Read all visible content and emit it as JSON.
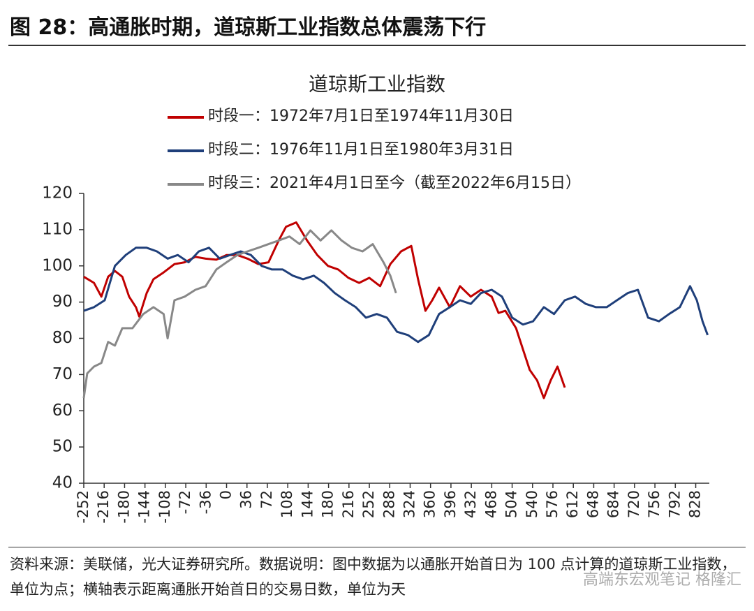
{
  "header_title": "图 28：高通胀时期，道琼斯工业指数总体震荡下行",
  "source_note": "资料来源：美联储，光大证券研究所。数据说明：图中数据为以通胀开始首日为 100 点计算的道琼斯工业指数，单位为点；横轴表示距离通胀开始首日的交易日数，单位为天",
  "watermark": "高端东宏观笔记 格隆汇",
  "chart_data": {
    "type": "line",
    "title": "道琼斯工业指数",
    "xlim": [
      -252,
      852
    ],
    "ylim": [
      40,
      120
    ],
    "xticks": [
      -252,
      -216,
      -180,
      -144,
      -108,
      -72,
      -36,
      0,
      36,
      72,
      108,
      144,
      180,
      216,
      252,
      288,
      324,
      360,
      396,
      432,
      468,
      504,
      540,
      576,
      612,
      648,
      684,
      720,
      756,
      792,
      828
    ],
    "yticks": [
      40,
      50,
      60,
      70,
      80,
      90,
      100,
      110,
      120
    ],
    "grid": false,
    "legend": "top-left",
    "series": [
      {
        "name": "时段一：1972年7月1日至1974年11月30日",
        "color": "#c00000",
        "x": [
          -252,
          -234,
          -221,
          -209,
          -197,
          -184,
          -172,
          -160,
          -154,
          -141,
          -129,
          -111,
          -92,
          -74,
          -55,
          -37,
          -18,
          0,
          19,
          37,
          56,
          74,
          92,
          105,
          123,
          142,
          160,
          179,
          197,
          215,
          234,
          252,
          271,
          289,
          308,
          326,
          338,
          351,
          363,
          375,
          394,
          412,
          431,
          449,
          468,
          480,
          492,
          511,
          523,
          535,
          548,
          560,
          572,
          584,
          597
        ],
        "values": [
          97,
          95.3,
          91.5,
          97,
          98.6,
          97,
          91.5,
          88.6,
          86,
          92.5,
          96.3,
          98.2,
          100.5,
          101,
          102.5,
          102,
          101.7,
          103,
          103,
          102,
          100.5,
          101,
          107,
          110.8,
          112,
          107,
          103,
          100,
          99,
          96.7,
          95.3,
          96.7,
          94.4,
          100.5,
          104,
          105.5,
          96.3,
          87.6,
          90.5,
          94,
          88.6,
          94.4,
          91.5,
          93.4,
          91.5,
          87,
          87.6,
          82.8,
          77,
          71.3,
          68.4,
          63.5,
          68.4,
          72.2,
          66.4
        ]
      },
      {
        "name": "时段二：1976年11月1日至1980年3月31日",
        "color": "#1f3f7a",
        "x": [
          -252,
          -234,
          -215,
          -197,
          -178,
          -160,
          -141,
          -123,
          -104,
          -86,
          -67,
          -49,
          -31,
          -12,
          6,
          25,
          43,
          62,
          80,
          99,
          117,
          135,
          154,
          172,
          191,
          209,
          228,
          246,
          265,
          283,
          301,
          320,
          338,
          357,
          375,
          394,
          412,
          431,
          449,
          468,
          486,
          504,
          523,
          541,
          560,
          578,
          597,
          615,
          634,
          652,
          671,
          689,
          708,
          726,
          744,
          763,
          781,
          800,
          818,
          830,
          840,
          849
        ],
        "values": [
          87.6,
          88.6,
          90.5,
          100,
          103,
          105,
          105,
          104,
          102,
          103,
          101,
          104,
          105,
          102,
          103,
          104,
          103,
          100,
          99,
          99,
          97.3,
          96.3,
          97.3,
          95.3,
          92.5,
          90.5,
          88.6,
          85.7,
          86.7,
          85.7,
          81.8,
          80.9,
          79,
          80.9,
          86.7,
          88.6,
          90.5,
          89.5,
          92.5,
          93.4,
          91.5,
          85.7,
          83.8,
          84.7,
          88.6,
          86.7,
          90.5,
          91.5,
          89.5,
          88.6,
          88.6,
          90.5,
          92.5,
          93.4,
          85.7,
          84.7,
          86.7,
          88.6,
          94.4,
          90.5,
          84.7,
          80.9
        ]
      },
      {
        "name": "时段三：2021年4月1日至今（截至2022年6月15日）",
        "color": "#888888",
        "x": [
          -252,
          -246,
          -234,
          -221,
          -209,
          -197,
          -184,
          -166,
          -147,
          -129,
          -111,
          -104,
          -92,
          -74,
          -55,
          -37,
          -18,
          0,
          19,
          37,
          56,
          74,
          92,
          111,
          129,
          148,
          166,
          185,
          203,
          221,
          240,
          258,
          277,
          289,
          299
        ],
        "values": [
          63.5,
          70.3,
          72.2,
          73.2,
          79,
          78,
          82.8,
          82.8,
          86.7,
          88.6,
          86.7,
          80,
          90.5,
          91.5,
          93.4,
          94.4,
          99,
          101,
          103,
          104,
          105,
          106,
          107,
          108.1,
          106,
          109.8,
          107,
          109.8,
          107,
          105,
          104,
          106,
          101,
          97.3,
          92.5
        ]
      }
    ]
  }
}
